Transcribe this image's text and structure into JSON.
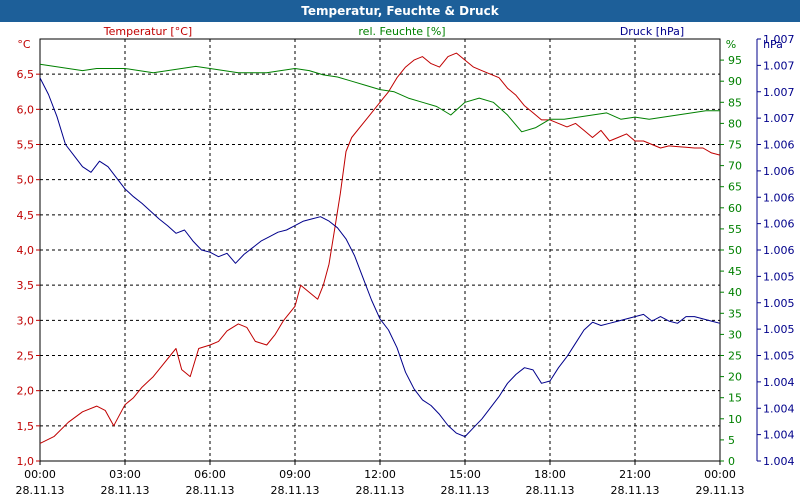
{
  "window": {
    "title": "Temperatur, Feuchte & Druck"
  },
  "chart_data": {
    "type": "line",
    "title": "Temperatur, Feuchte & Druck",
    "grid": true,
    "x": {
      "labels": [
        "00:00",
        "03:00",
        "06:00",
        "09:00",
        "12:00",
        "15:00",
        "18:00",
        "21:00",
        "00:00"
      ],
      "dates": [
        "28.11.13",
        "28.11.13",
        "28.11.13",
        "28.11.13",
        "28.11.13",
        "28.11.13",
        "28.11.13",
        "28.11.13",
        "29.11.13"
      ],
      "range_hours": [
        0,
        24
      ]
    },
    "axes": {
      "temperature": {
        "unit": "°C",
        "ylim": [
          1.0,
          7.0
        ],
        "ticks": [
          "1,0",
          "1,5",
          "2,0",
          "2,5",
          "3,0",
          "3,5",
          "4,0",
          "4,5",
          "5,0",
          "5,5",
          "6,0",
          "6,5"
        ]
      },
      "humidity": {
        "unit": "%",
        "ylim": [
          0,
          100
        ],
        "ticks": [
          "0",
          "5",
          "10",
          "15",
          "20",
          "25",
          "30",
          "35",
          "40",
          "45",
          "50",
          "55",
          "60",
          "65",
          "70",
          "75",
          "80",
          "85",
          "90",
          "95"
        ]
      },
      "pressure": {
        "unit": "hPa",
        "ylim": [
          1003.6,
          1007.4
        ],
        "ticks": [
          "1.004",
          "1.004",
          "1.004",
          "1.004",
          "1.005",
          "1.005",
          "1.005",
          "1.005",
          "1.006",
          "1.006",
          "1.006",
          "1.006",
          "1.006",
          "1.007",
          "1.007",
          "1.007",
          "1.007"
        ]
      }
    },
    "series": [
      {
        "name": "Temperatur [°C]",
        "axis": "temperature",
        "color": "#c00000",
        "x": [
          0,
          0.5,
          1,
          1.5,
          2,
          2.3,
          2.6,
          3,
          3.3,
          3.6,
          4,
          4.3,
          4.6,
          4.8,
          5,
          5.3,
          5.6,
          6,
          6.3,
          6.6,
          7,
          7.3,
          7.6,
          8,
          8.3,
          8.6,
          9,
          9.2,
          9.5,
          9.8,
          10,
          10.2,
          10.4,
          10.6,
          10.8,
          11,
          11.3,
          11.6,
          12,
          12.3,
          12.6,
          12.9,
          13.2,
          13.5,
          13.8,
          14.1,
          14.4,
          14.7,
          15,
          15.3,
          15.6,
          15.9,
          16.2,
          16.5,
          16.8,
          17.1,
          17.4,
          17.7,
          18,
          18.3,
          18.6,
          18.9,
          19.2,
          19.5,
          19.8,
          20.1,
          20.4,
          20.7,
          21,
          21.3,
          21.6,
          21.9,
          22.2,
          22.5,
          22.8,
          23.1,
          23.4,
          23.7,
          24
        ],
        "values": [
          1.25,
          1.35,
          1.55,
          1.7,
          1.78,
          1.72,
          1.5,
          1.8,
          1.9,
          2.05,
          2.2,
          2.35,
          2.5,
          2.6,
          2.3,
          2.2,
          2.6,
          2.65,
          2.7,
          2.85,
          2.95,
          2.9,
          2.7,
          2.65,
          2.8,
          3.0,
          3.2,
          3.5,
          3.4,
          3.3,
          3.5,
          3.8,
          4.3,
          4.8,
          5.4,
          5.6,
          5.75,
          5.9,
          6.1,
          6.25,
          6.45,
          6.6,
          6.7,
          6.75,
          6.65,
          6.6,
          6.75,
          6.8,
          6.7,
          6.6,
          6.55,
          6.5,
          6.45,
          6.3,
          6.2,
          6.05,
          5.95,
          5.85,
          5.85,
          5.8,
          5.75,
          5.8,
          5.7,
          5.6,
          5.7,
          5.55,
          5.6,
          5.65,
          5.55,
          5.55,
          5.5,
          5.45,
          5.48,
          5.47,
          5.46,
          5.45,
          5.45,
          5.38,
          5.35
        ]
      },
      {
        "name": "rel. Feuchte [%]",
        "axis": "humidity",
        "color": "#008000",
        "x": [
          0,
          0.5,
          1,
          1.5,
          2,
          2.5,
          3,
          3.5,
          4,
          4.5,
          5,
          5.5,
          6,
          6.5,
          7,
          7.5,
          8,
          8.5,
          9,
          9.5,
          10,
          10.5,
          11,
          11.5,
          12,
          12.5,
          13,
          13.5,
          14,
          14.5,
          15,
          15.5,
          16,
          16.5,
          17,
          17.5,
          18,
          18.5,
          19,
          19.5,
          20,
          20.5,
          21,
          21.5,
          22,
          22.5,
          23,
          23.5,
          24
        ],
        "values": [
          94,
          93.5,
          93,
          92.5,
          93,
          93,
          93,
          92.5,
          92,
          92.5,
          93,
          93.5,
          93,
          92.5,
          92,
          92,
          92,
          92.5,
          93,
          92.5,
          91.5,
          91,
          90,
          89,
          88,
          87.5,
          86,
          85,
          84,
          82,
          85,
          86,
          85,
          82,
          78,
          79,
          81,
          81,
          81.5,
          82,
          82.5,
          81,
          81.5,
          81,
          81.5,
          82,
          82.5,
          83,
          83
        ]
      },
      {
        "name": "Druck [hPa]",
        "axis": "pressure",
        "color": "#00008b",
        "x": [
          0,
          0.3,
          0.6,
          0.9,
          1.2,
          1.5,
          1.8,
          2.1,
          2.4,
          2.7,
          3,
          3.3,
          3.6,
          3.9,
          4.2,
          4.5,
          4.8,
          5.1,
          5.4,
          5.7,
          6,
          6.3,
          6.6,
          6.9,
          7.2,
          7.5,
          7.8,
          8.1,
          8.4,
          8.7,
          9,
          9.3,
          9.6,
          9.9,
          10.2,
          10.5,
          10.8,
          11.1,
          11.4,
          11.7,
          12,
          12.3,
          12.6,
          12.9,
          13.2,
          13.5,
          13.8,
          14.1,
          14.4,
          14.7,
          15,
          15.3,
          15.6,
          15.9,
          16.2,
          16.5,
          16.8,
          17.1,
          17.4,
          17.7,
          18,
          18.3,
          18.6,
          18.9,
          19.2,
          19.5,
          19.8,
          20.1,
          20.4,
          20.7,
          21,
          21.3,
          21.6,
          21.9,
          22.2,
          22.5,
          22.8,
          23.1,
          23.4,
          23.7,
          24
        ],
        "values": [
          1007.05,
          1006.9,
          1006.7,
          1006.45,
          1006.35,
          1006.25,
          1006.2,
          1006.3,
          1006.25,
          1006.15,
          1006.05,
          1005.98,
          1005.92,
          1005.85,
          1005.78,
          1005.72,
          1005.65,
          1005.68,
          1005.58,
          1005.5,
          1005.48,
          1005.44,
          1005.47,
          1005.38,
          1005.46,
          1005.52,
          1005.58,
          1005.62,
          1005.66,
          1005.68,
          1005.72,
          1005.76,
          1005.78,
          1005.8,
          1005.76,
          1005.7,
          1005.6,
          1005.45,
          1005.25,
          1005.05,
          1004.88,
          1004.78,
          1004.62,
          1004.4,
          1004.25,
          1004.15,
          1004.1,
          1004.02,
          1003.92,
          1003.85,
          1003.82,
          1003.9,
          1003.98,
          1004.08,
          1004.18,
          1004.3,
          1004.38,
          1004.44,
          1004.42,
          1004.3,
          1004.32,
          1004.44,
          1004.54,
          1004.66,
          1004.78,
          1004.85,
          1004.82,
          1004.84,
          1004.86,
          1004.88,
          1004.9,
          1004.92,
          1004.86,
          1004.9,
          1004.86,
          1004.84,
          1004.9,
          1004.9,
          1004.88,
          1004.86,
          1004.84
        ]
      }
    ]
  }
}
